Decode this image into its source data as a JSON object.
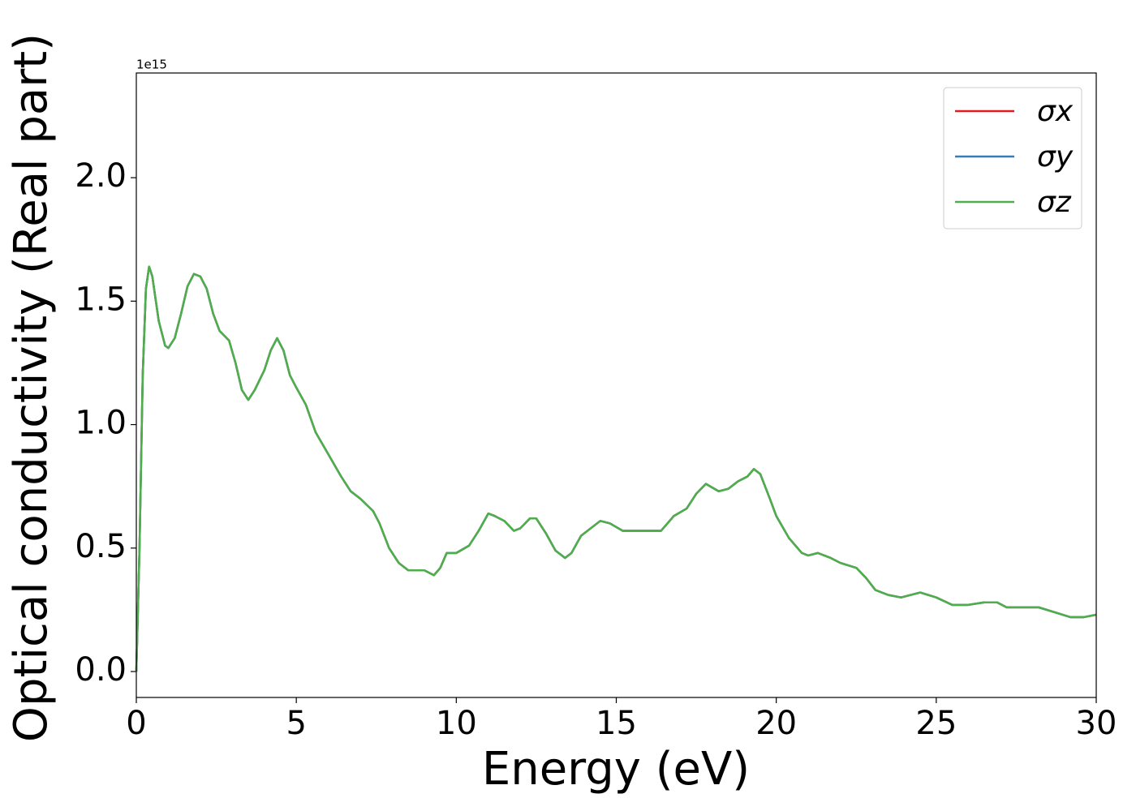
{
  "chart_data": {
    "type": "line",
    "y_offset_label": "1e15",
    "xlabel": "Energy (eV)",
    "ylabel": "Optical conductivity (Real part)",
    "xlim": [
      0,
      30
    ],
    "ylim": [
      -0.105,
      2.424
    ],
    "xticks": [
      0,
      5,
      10,
      15,
      20,
      25,
      30
    ],
    "yticks": [
      {
        "value": 0,
        "label": "0.0"
      },
      0.5,
      {
        "value": 1,
        "label": "1.0"
      },
      1.5,
      {
        "value": 2,
        "label": "2.0"
      }
    ],
    "grid": false,
    "legend": "upper right",
    "x": [
      0,
      0.1,
      0.2,
      0.3,
      0.4,
      0.5,
      0.7,
      0.9,
      1.0,
      1.2,
      1.4,
      1.6,
      1.8,
      2.0,
      2.2,
      2.4,
      2.6,
      2.9,
      3.1,
      3.3,
      3.5,
      3.7,
      4.0,
      4.2,
      4.4,
      4.6,
      4.8,
      5.0,
      5.3,
      5.6,
      6.0,
      6.4,
      6.7,
      7.0,
      7.4,
      7.6,
      7.9,
      8.2,
      8.5,
      9.0,
      9.3,
      9.5,
      9.7,
      10.0,
      10.4,
      10.7,
      11.0,
      11.2,
      11.5,
      11.8,
      12.0,
      12.3,
      12.5,
      12.8,
      13.1,
      13.4,
      13.6,
      13.9,
      14.2,
      14.5,
      14.8,
      15.2,
      15.6,
      16.0,
      16.4,
      16.8,
      17.2,
      17.5,
      17.8,
      18.2,
      18.5,
      18.8,
      19.1,
      19.3,
      19.5,
      19.8,
      20.0,
      20.4,
      20.8,
      21.0,
      21.3,
      21.7,
      22.0,
      22.5,
      22.8,
      23.1,
      23.5,
      23.9,
      24.5,
      25.0,
      25.5,
      26.0,
      26.5,
      26.9,
      27.2,
      27.6,
      28.2,
      28.7,
      29.2,
      29.6,
      30.0
    ],
    "series": [
      {
        "name": "σx",
        "color": "#e41a1c",
        "values": [
          0,
          0.5,
          1.2,
          1.55,
          1.64,
          1.6,
          1.42,
          1.32,
          1.31,
          1.35,
          1.45,
          1.56,
          1.61,
          1.6,
          1.55,
          1.45,
          1.38,
          1.34,
          1.25,
          1.14,
          1.1,
          1.14,
          1.22,
          1.3,
          1.35,
          1.3,
          1.2,
          1.15,
          1.08,
          0.97,
          0.88,
          0.79,
          0.73,
          0.7,
          0.65,
          0.6,
          0.5,
          0.44,
          0.41,
          0.41,
          0.39,
          0.42,
          0.48,
          0.48,
          0.51,
          0.57,
          0.64,
          0.63,
          0.61,
          0.57,
          0.58,
          0.62,
          0.62,
          0.56,
          0.49,
          0.46,
          0.48,
          0.55,
          0.58,
          0.61,
          0.6,
          0.57,
          0.57,
          0.57,
          0.57,
          0.63,
          0.66,
          0.72,
          0.76,
          0.73,
          0.74,
          0.77,
          0.79,
          0.82,
          0.8,
          0.7,
          0.63,
          0.54,
          0.48,
          0.47,
          0.48,
          0.46,
          0.44,
          0.42,
          0.38,
          0.33,
          0.31,
          0.3,
          0.32,
          0.3,
          0.27,
          0.27,
          0.28,
          0.28,
          0.26,
          0.26,
          0.26,
          0.24,
          0.22,
          0.22,
          0.23
        ]
      },
      {
        "name": "σy",
        "color": "#377eb8",
        "values": [
          0,
          0.5,
          1.2,
          1.55,
          1.64,
          1.6,
          1.42,
          1.32,
          1.31,
          1.35,
          1.45,
          1.56,
          1.61,
          1.6,
          1.55,
          1.45,
          1.38,
          1.34,
          1.25,
          1.14,
          1.1,
          1.14,
          1.22,
          1.3,
          1.35,
          1.3,
          1.2,
          1.15,
          1.08,
          0.97,
          0.88,
          0.79,
          0.73,
          0.7,
          0.65,
          0.6,
          0.5,
          0.44,
          0.41,
          0.41,
          0.39,
          0.42,
          0.48,
          0.48,
          0.51,
          0.57,
          0.64,
          0.63,
          0.61,
          0.57,
          0.58,
          0.62,
          0.62,
          0.56,
          0.49,
          0.46,
          0.48,
          0.55,
          0.58,
          0.61,
          0.6,
          0.57,
          0.57,
          0.57,
          0.57,
          0.63,
          0.66,
          0.72,
          0.76,
          0.73,
          0.74,
          0.77,
          0.79,
          0.82,
          0.8,
          0.7,
          0.63,
          0.54,
          0.48,
          0.47,
          0.48,
          0.46,
          0.44,
          0.42,
          0.38,
          0.33,
          0.31,
          0.3,
          0.32,
          0.3,
          0.27,
          0.27,
          0.28,
          0.28,
          0.26,
          0.26,
          0.26,
          0.24,
          0.22,
          0.22,
          0.23
        ]
      },
      {
        "name": "σz",
        "color": "#4daf4a",
        "values": [
          0,
          0.5,
          1.2,
          1.55,
          1.64,
          1.6,
          1.42,
          1.32,
          1.31,
          1.35,
          1.45,
          1.56,
          1.61,
          1.6,
          1.55,
          1.45,
          1.38,
          1.34,
          1.25,
          1.14,
          1.1,
          1.14,
          1.22,
          1.3,
          1.35,
          1.3,
          1.2,
          1.15,
          1.08,
          0.97,
          0.88,
          0.79,
          0.73,
          0.7,
          0.65,
          0.6,
          0.5,
          0.44,
          0.41,
          0.41,
          0.39,
          0.42,
          0.48,
          0.48,
          0.51,
          0.57,
          0.64,
          0.63,
          0.61,
          0.57,
          0.58,
          0.62,
          0.62,
          0.56,
          0.49,
          0.46,
          0.48,
          0.55,
          0.58,
          0.61,
          0.6,
          0.57,
          0.57,
          0.57,
          0.57,
          0.63,
          0.66,
          0.72,
          0.76,
          0.73,
          0.74,
          0.77,
          0.79,
          0.82,
          0.8,
          0.7,
          0.63,
          0.54,
          0.48,
          0.47,
          0.48,
          0.46,
          0.44,
          0.42,
          0.38,
          0.33,
          0.31,
          0.3,
          0.32,
          0.3,
          0.27,
          0.27,
          0.28,
          0.28,
          0.26,
          0.26,
          0.26,
          0.24,
          0.22,
          0.22,
          0.23
        ]
      }
    ]
  }
}
